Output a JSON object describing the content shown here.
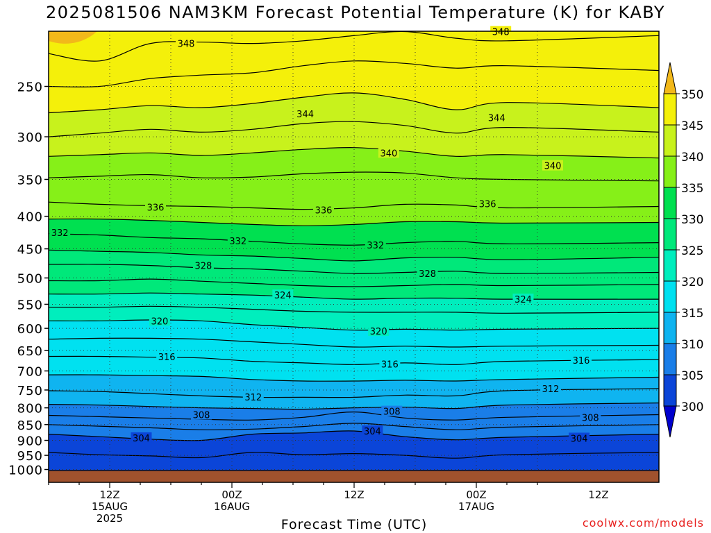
{
  "chart_data": {
    "type": "heatmap",
    "title": "2025081506 NAM3KM Forecast Potential Temperature (K) for KABY",
    "xlabel": "Forecast Time (UTC)",
    "ylabel": "",
    "credit": "coolwx.com/models",
    "y_axis": {
      "scale": "log-pressure",
      "ticks": [
        250,
        300,
        350,
        400,
        450,
        500,
        550,
        600,
        650,
        700,
        750,
        800,
        850,
        900,
        950,
        1000
      ],
      "range": [
        200,
        1025
      ],
      "inverted": true
    },
    "x_axis": {
      "range_hours": [
        -6,
        44
      ],
      "ticks": [
        {
          "hour": 0,
          "lines": [
            "12Z",
            "15AUG",
            "2025"
          ]
        },
        {
          "hour": 12,
          "lines": [
            "00Z",
            "16AUG"
          ]
        },
        {
          "hour": 24,
          "lines": [
            "12Z"
          ]
        },
        {
          "hour": 36,
          "lines": [
            "00Z",
            "17AUG"
          ]
        },
        {
          "hour": 48,
          "lines": [
            "12Z"
          ]
        }
      ]
    },
    "grid": true,
    "colorbar": {
      "position": "right",
      "levels": [
        300,
        305,
        310,
        315,
        320,
        325,
        330,
        335,
        340,
        345,
        350
      ],
      "colors": [
        "#0000cd",
        "#0b45d8",
        "#1a7ee8",
        "#0fb4f0",
        "#00e1f0",
        "#00eebd",
        "#00e87a",
        "#00e050",
        "#86f018",
        "#c8f21c",
        "#f4f00a",
        "#f2b81a"
      ],
      "extend": "both"
    },
    "contour_interval": 2,
    "contour_labels": [
      {
        "value": 348,
        "hour": 7.5,
        "p": 214
      },
      {
        "value": 348,
        "hour": 38.4,
        "p": 205
      },
      {
        "value": 344,
        "hour": 19.2,
        "p": 276
      },
      {
        "value": 344,
        "hour": 38.0,
        "p": 280
      },
      {
        "value": 340,
        "hour": 27.4,
        "p": 318
      },
      {
        "value": 340,
        "hour": 43.5,
        "p": 333
      },
      {
        "value": 336,
        "hour": 4.5,
        "p": 387
      },
      {
        "value": 336,
        "hour": 21.0,
        "p": 391
      },
      {
        "value": 336,
        "hour": 37.1,
        "p": 382
      },
      {
        "value": 332,
        "hour": -4.9,
        "p": 424
      },
      {
        "value": 332,
        "hour": 12.6,
        "p": 437
      },
      {
        "value": 332,
        "hour": 26.1,
        "p": 444
      },
      {
        "value": 328,
        "hour": 9.2,
        "p": 478
      },
      {
        "value": 328,
        "hour": 31.2,
        "p": 492
      },
      {
        "value": 324,
        "hour": 17.0,
        "p": 532
      },
      {
        "value": 324,
        "hour": 40.6,
        "p": 540
      },
      {
        "value": 320,
        "hour": 4.9,
        "p": 584
      },
      {
        "value": 320,
        "hour": 26.4,
        "p": 606
      },
      {
        "value": 316,
        "hour": 5.6,
        "p": 665
      },
      {
        "value": 316,
        "hour": 27.5,
        "p": 683
      },
      {
        "value": 316,
        "hour": 46.3,
        "p": 673
      },
      {
        "value": 312,
        "hour": 14.1,
        "p": 769
      },
      {
        "value": 312,
        "hour": 43.3,
        "p": 746
      },
      {
        "value": 308,
        "hour": 9.0,
        "p": 820
      },
      {
        "value": 308,
        "hour": 27.7,
        "p": 810
      },
      {
        "value": 308,
        "hour": 47.2,
        "p": 828
      },
      {
        "value": 304,
        "hour": 3.1,
        "p": 892
      },
      {
        "value": 304,
        "hour": 25.8,
        "p": 870
      },
      {
        "value": 304,
        "hour": 46.1,
        "p": 893
      }
    ],
    "isentropes_p": [
      {
        "value": 350,
        "p": [
          203,
          200,
          198,
          199,
          201,
          200,
          198,
          200,
          201,
          199,
          200
        ]
      },
      {
        "value": 348,
        "p": [
          222,
          228,
          214,
          213,
          214,
          212,
          208,
          205,
          210,
          212,
          208
        ]
      },
      {
        "value": 346,
        "p": [
          250,
          250,
          243,
          240,
          238,
          232,
          228,
          230,
          234,
          232,
          236
        ]
      },
      {
        "value": 344,
        "p": [
          275,
          272,
          268,
          270,
          266,
          260,
          256,
          262,
          272,
          265,
          270
        ]
      },
      {
        "value": 342,
        "p": [
          300,
          296,
          292,
          295,
          292,
          286,
          284,
          288,
          296,
          290,
          295
        ]
      },
      {
        "value": 340,
        "p": [
          322,
          320,
          318,
          321,
          318,
          314,
          312,
          316,
          322,
          320,
          324
        ]
      },
      {
        "value": 338,
        "p": [
          348,
          346,
          344,
          348,
          347,
          343,
          341,
          342,
          348,
          350,
          352
        ]
      },
      {
        "value": 336,
        "p": [
          380,
          383,
          385,
          386,
          388,
          390,
          388,
          383,
          384,
          388,
          386
        ]
      },
      {
        "value": 334,
        "p": [
          404,
          404,
          406,
          409,
          412,
          414,
          412,
          408,
          408,
          410,
          409
        ]
      },
      {
        "value": 332,
        "p": [
          426,
          428,
          432,
          434,
          438,
          442,
          444,
          440,
          438,
          442,
          440
        ]
      },
      {
        "value": 330,
        "p": [
          452,
          454,
          456,
          460,
          462,
          466,
          470,
          465,
          464,
          468,
          464
        ]
      },
      {
        "value": 328,
        "p": [
          476,
          476,
          478,
          482,
          484,
          488,
          492,
          490,
          488,
          492,
          490
        ]
      },
      {
        "value": 326,
        "p": [
          505,
          505,
          502,
          506,
          510,
          514,
          516,
          514,
          512,
          514,
          512
        ]
      },
      {
        "value": 324,
        "p": [
          530,
          530,
          528,
          530,
          532,
          536,
          540,
          538,
          538,
          540,
          540
        ]
      },
      {
        "value": 322,
        "p": [
          556,
          556,
          554,
          556,
          560,
          564,
          566,
          566,
          566,
          568,
          566
        ]
      },
      {
        "value": 320,
        "p": [
          584,
          584,
          582,
          584,
          592,
          598,
          604,
          602,
          604,
          602,
          600
        ]
      },
      {
        "value": 318,
        "p": [
          624,
          622,
          622,
          624,
          630,
          636,
          642,
          640,
          642,
          640,
          638
        ]
      },
      {
        "value": 316,
        "p": [
          664,
          664,
          666,
          668,
          676,
          680,
          684,
          680,
          684,
          676,
          672
        ]
      },
      {
        "value": 314,
        "p": [
          710,
          710,
          712,
          714,
          722,
          726,
          726,
          724,
          726,
          722,
          716
        ]
      },
      {
        "value": 312,
        "p": [
          752,
          754,
          760,
          766,
          770,
          770,
          770,
          764,
          766,
          752,
          746
        ]
      },
      {
        "value": 310,
        "p": [
          790,
          792,
          796,
          800,
          802,
          804,
          800,
          798,
          802,
          792,
          786
        ]
      },
      {
        "value": 308,
        "p": [
          822,
          826,
          830,
          834,
          836,
          828,
          812,
          830,
          836,
          828,
          820
        ]
      },
      {
        "value": 306,
        "p": [
          850,
          855,
          860,
          866,
          864,
          856,
          846,
          856,
          866,
          858,
          850
        ]
      },
      {
        "value": 304,
        "p": [
          880,
          888,
          896,
          900,
          880,
          876,
          870,
          888,
          898,
          890,
          880
        ]
      },
      {
        "value": 302,
        "p": [
          940,
          948,
          952,
          958,
          940,
          948,
          944,
          950,
          960,
          948,
          940
        ]
      },
      {
        "value": 300,
        "p": [
          1012,
          1015,
          1020,
          1025,
          1025,
          1018,
          1015,
          1025,
          1025,
          1016,
          1025
        ]
      }
    ],
    "isentrope_hours": [
      -6,
      -1,
      4,
      9,
      14,
      19,
      24,
      29,
      34,
      39,
      44
    ],
    "ground_color": "#a0522d"
  }
}
